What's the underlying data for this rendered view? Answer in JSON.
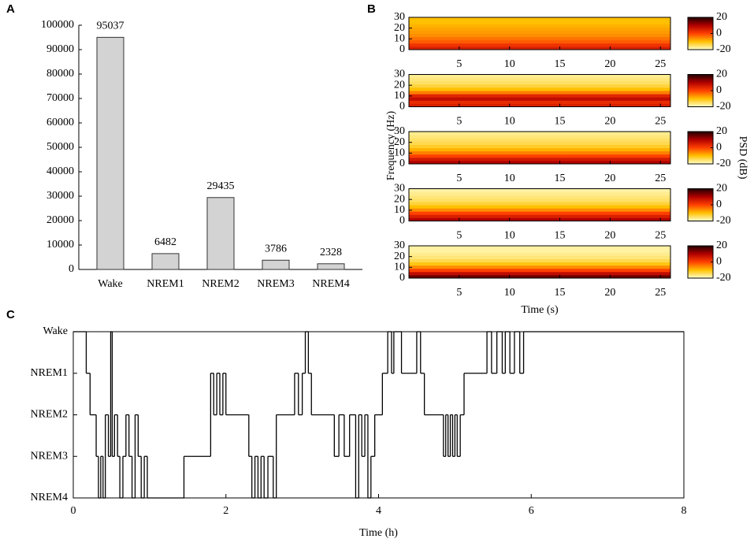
{
  "chart_data": [
    {
      "type": "bar",
      "panel": "A",
      "categories": [
        "Wake",
        "NREM1",
        "NREM2",
        "NREM3",
        "NREM4"
      ],
      "values": [
        95037,
        6482,
        29435,
        3786,
        2328
      ],
      "color": "#d3d3d3",
      "ylim": [
        0,
        100000
      ],
      "yticks": [
        0,
        10000,
        20000,
        30000,
        40000,
        50000,
        60000,
        70000,
        80000,
        90000,
        100000
      ]
    },
    {
      "type": "heatmap",
      "panel": "B",
      "ylabel": "Frequency (Hz)",
      "xlabel": "Time (s)",
      "clabel": "PSD (dB)",
      "xlim": [
        0,
        26
      ],
      "xticks": [
        5,
        10,
        15,
        20,
        25
      ],
      "ylim": [
        0,
        30
      ],
      "yticks": [
        0,
        10,
        20,
        30
      ],
      "clim": [
        -20,
        20
      ],
      "cticks": [
        20,
        0,
        -20
      ],
      "colormap": [
        "#200000",
        "#b00000",
        "#ff4000",
        "#ffc000",
        "#ffffcc"
      ],
      "ybins": [
        0,
        3,
        6,
        9,
        12,
        15,
        18,
        21,
        24,
        27,
        30
      ],
      "plots": [
        {
          "values": [
            5,
            2,
            -2,
            -4,
            -6,
            -7,
            -8,
            -9,
            -10,
            -10
          ]
        },
        {
          "values": [
            5,
            3,
            8,
            4,
            -5,
            -10,
            -13,
            -15,
            -16,
            -17
          ]
        },
        {
          "values": [
            10,
            6,
            0,
            -5,
            -9,
            -12,
            -14,
            -15,
            -16,
            -17
          ]
        },
        {
          "values": [
            10,
            5,
            0,
            -6,
            -10,
            -13,
            -15,
            -16,
            -17,
            -18
          ]
        },
        {
          "values": [
            15,
            8,
            0,
            -6,
            -11,
            -14,
            -16,
            -17,
            -18,
            -18
          ]
        }
      ]
    },
    {
      "type": "step",
      "panel": "C",
      "xlabel": "Time (h)",
      "xlim": [
        0,
        8
      ],
      "xticks": [
        0,
        2,
        4,
        6,
        8
      ],
      "ylim": [
        0,
        4
      ],
      "yticks": [
        {
          "value": 4,
          "label": "Wake"
        },
        {
          "value": 3,
          "label": "NREM1"
        },
        {
          "value": 2,
          "label": "NREM2"
        },
        {
          "value": 1,
          "label": "NREM3"
        },
        {
          "value": 0,
          "label": "NREM4"
        }
      ],
      "x": [
        0,
        0.17,
        0.22,
        0.3,
        0.33,
        0.36,
        0.39,
        0.42,
        0.46,
        0.49,
        0.51,
        0.54,
        0.58,
        0.61,
        0.65,
        0.69,
        0.73,
        0.77,
        0.81,
        0.85,
        0.89,
        0.93,
        0.97,
        1.45,
        1.8,
        1.84,
        1.88,
        1.92,
        1.96,
        2.0,
        2.3,
        2.34,
        2.38,
        2.42,
        2.46,
        2.5,
        2.55,
        2.62,
        2.66,
        2.9,
        2.95,
        3.0,
        3.04,
        3.08,
        3.12,
        3.42,
        3.48,
        3.55,
        3.62,
        3.7,
        3.74,
        3.78,
        3.82,
        3.86,
        3.9,
        3.95,
        4.05,
        4.12,
        4.17,
        4.2,
        4.3,
        4.5,
        4.55,
        4.6,
        4.85,
        4.88,
        4.91,
        4.94,
        4.97,
        5.0,
        5.03,
        5.07,
        5.12,
        5.42,
        5.48,
        5.55,
        5.62,
        5.66,
        5.72,
        5.78,
        5.85,
        5.9,
        8
      ],
      "values": [
        4,
        3,
        2,
        1,
        0,
        1,
        0,
        2,
        1,
        4,
        1,
        2,
        1,
        0,
        1,
        2,
        1,
        0,
        2,
        1,
        0,
        1,
        0,
        1,
        3,
        2,
        3,
        2,
        3,
        2,
        1,
        0,
        1,
        0,
        1,
        0,
        1,
        0,
        2,
        3,
        2,
        3,
        4,
        3,
        2,
        1,
        2,
        1,
        2,
        0,
        2,
        1,
        2,
        0,
        1,
        2,
        3,
        4,
        3,
        4,
        3,
        4,
        3,
        2,
        1,
        2,
        1,
        2,
        1,
        2,
        1,
        2,
        3,
        4,
        3,
        4,
        3,
        4,
        3,
        4,
        3,
        4,
        4
      ],
      "color": "#000000"
    }
  ]
}
